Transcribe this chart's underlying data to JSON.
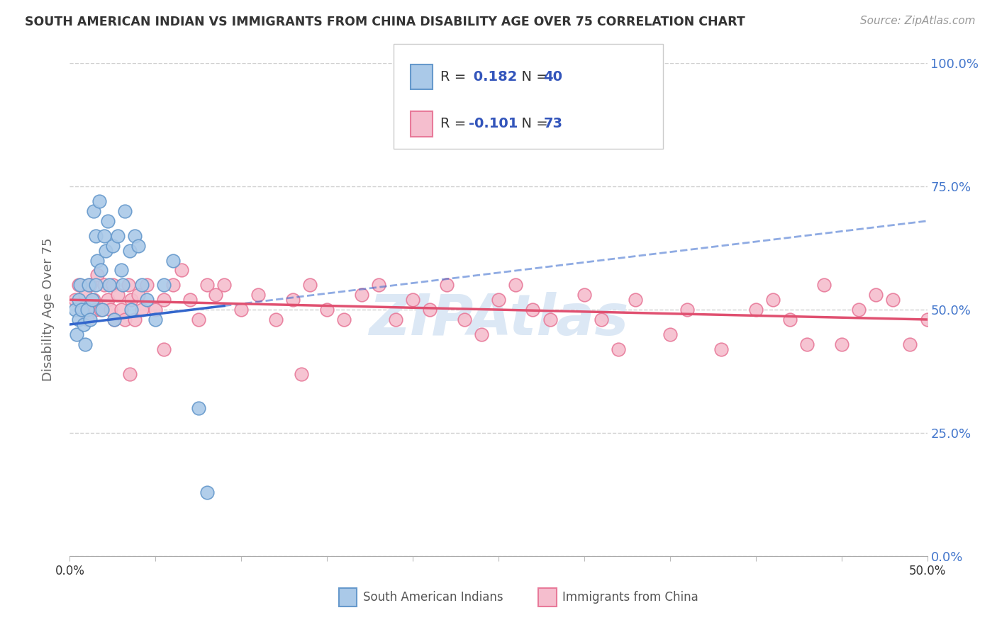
{
  "title": "SOUTH AMERICAN INDIAN VS IMMIGRANTS FROM CHINA DISABILITY AGE OVER 75 CORRELATION CHART",
  "source": "Source: ZipAtlas.com",
  "ylabel": "Disability Age Over 75",
  "yticks_labels": [
    "0.0%",
    "25.0%",
    "50.0%",
    "75.0%",
    "100.0%"
  ],
  "ytick_vals": [
    0,
    25,
    50,
    75,
    100
  ],
  "xlim": [
    0,
    50
  ],
  "ylim": [
    0,
    100
  ],
  "legend1_label_r": "0.182",
  "legend1_label_n": "40",
  "legend2_label_r": "-0.101",
  "legend2_label_n": "73",
  "series1_color": "#aac9e8",
  "series1_edge": "#6699cc",
  "series2_color": "#f5bece",
  "series2_edge": "#e87a9a",
  "trend1_color": "#3366cc",
  "trend2_color": "#e05070",
  "watermark": "ZIPAtlas",
  "blue_x": [
    0.3,
    0.4,
    0.5,
    0.5,
    0.6,
    0.7,
    0.8,
    0.9,
    1.0,
    1.1,
    1.2,
    1.3,
    1.4,
    1.5,
    1.5,
    1.6,
    1.7,
    1.8,
    1.9,
    2.0,
    2.1,
    2.2,
    2.3,
    2.5,
    2.6,
    2.8,
    3.0,
    3.1,
    3.2,
    3.5,
    3.6,
    3.8,
    4.0,
    4.2,
    4.5,
    5.0,
    5.5,
    6.0,
    7.5,
    8.0
  ],
  "blue_y": [
    50,
    45,
    48,
    52,
    55,
    50,
    47,
    43,
    50,
    55,
    48,
    52,
    70,
    65,
    55,
    60,
    72,
    58,
    50,
    65,
    62,
    68,
    55,
    63,
    48,
    65,
    58,
    55,
    70,
    62,
    50,
    65,
    63,
    55,
    52,
    48,
    55,
    60,
    30,
    13
  ],
  "pink_x": [
    0.3,
    0.5,
    0.7,
    0.9,
    1.0,
    1.2,
    1.4,
    1.5,
    1.6,
    1.8,
    2.0,
    2.2,
    2.4,
    2.5,
    2.6,
    2.8,
    3.0,
    3.2,
    3.4,
    3.6,
    3.8,
    4.0,
    4.2,
    4.5,
    5.0,
    5.5,
    6.0,
    6.5,
    7.0,
    7.5,
    8.0,
    8.5,
    9.0,
    10.0,
    11.0,
    12.0,
    13.0,
    14.0,
    15.0,
    16.0,
    17.0,
    18.0,
    19.0,
    20.0,
    21.0,
    22.0,
    23.0,
    24.0,
    25.0,
    26.0,
    27.0,
    28.0,
    30.0,
    31.0,
    32.0,
    33.0,
    35.0,
    36.0,
    38.0,
    40.0,
    41.0,
    42.0,
    43.0,
    44.0,
    45.0,
    46.0,
    47.0,
    48.0,
    49.0,
    50.0,
    3.5,
    5.5,
    13.5
  ],
  "pink_y": [
    52,
    55,
    50,
    53,
    48,
    55,
    52,
    50,
    57,
    50,
    55,
    52,
    50,
    55,
    48,
    53,
    50,
    48,
    55,
    52,
    48,
    53,
    50,
    55,
    50,
    52,
    55,
    58,
    52,
    48,
    55,
    53,
    55,
    50,
    53,
    48,
    52,
    55,
    50,
    48,
    53,
    55,
    48,
    52,
    50,
    55,
    48,
    45,
    52,
    55,
    50,
    48,
    53,
    48,
    42,
    52,
    45,
    50,
    42,
    50,
    52,
    48,
    43,
    55,
    43,
    50,
    53,
    52,
    43,
    48,
    37,
    42,
    37
  ],
  "blue_trend_x0": 0,
  "blue_trend_y0": 47,
  "blue_trend_x1": 50,
  "blue_trend_y1": 68,
  "blue_solid_end": 9,
  "pink_trend_x0": 0,
  "pink_trend_y0": 52,
  "pink_trend_x1": 50,
  "pink_trend_y1": 48
}
